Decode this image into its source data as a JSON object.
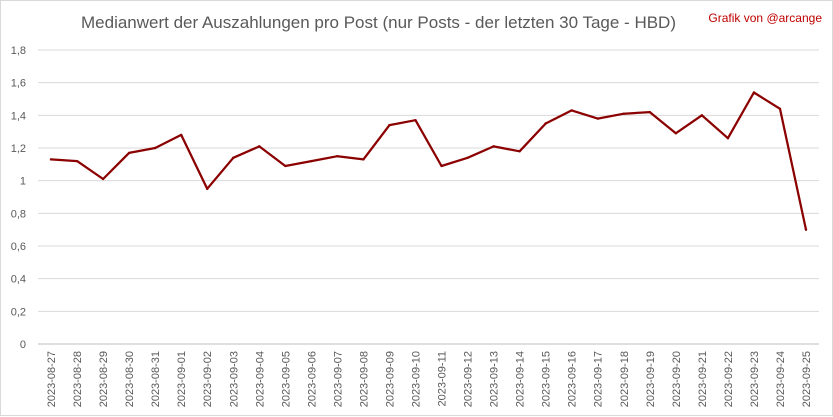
{
  "credit": "Grafik von @arcange",
  "chart_data": {
    "type": "line",
    "title": "Medianwert der Auszahlungen pro Post (nur Posts - der letzten 30 Tage - HBD)",
    "xlabel": "",
    "ylabel": "",
    "ylim": [
      0,
      1.8
    ],
    "yticks": [
      0,
      0.2,
      0.4,
      0.6,
      0.8,
      1.0,
      1.2,
      1.4,
      1.6,
      1.8
    ],
    "ytick_labels": [
      "0",
      "0,2",
      "0,4",
      "0,6",
      "0,8",
      "1",
      "1,2",
      "1,4",
      "1,6",
      "1,8"
    ],
    "grid": true,
    "legend": false,
    "line_color": "#8b0000",
    "categories": [
      "2023-08-27",
      "2023-08-28",
      "2023-08-29",
      "2023-08-30",
      "2023-08-31",
      "2023-09-01",
      "2023-09-02",
      "2023-09-03",
      "2023-09-04",
      "2023-09-05",
      "2023-09-06",
      "2023-09-07",
      "2023-09-08",
      "2023-09-09",
      "2023-09-10",
      "2023-09-11",
      "2023-09-12",
      "2023-09-13",
      "2023-09-14",
      "2023-09-15",
      "2023-09-16",
      "2023-09-17",
      "2023-09-18",
      "2023-09-19",
      "2023-09-20",
      "2023-09-21",
      "2023-09-22",
      "2023-09-23",
      "2023-09-24",
      "2023-09-25"
    ],
    "series": [
      {
        "values": [
          1.13,
          1.12,
          1.01,
          1.17,
          1.2,
          1.28,
          0.95,
          1.14,
          1.21,
          1.09,
          1.12,
          1.15,
          1.13,
          1.34,
          1.37,
          1.09,
          1.14,
          1.21,
          1.18,
          1.35,
          1.43,
          1.38,
          1.41,
          1.42,
          1.29,
          1.4,
          1.26,
          1.54,
          1.44,
          0.7
        ]
      }
    ]
  }
}
